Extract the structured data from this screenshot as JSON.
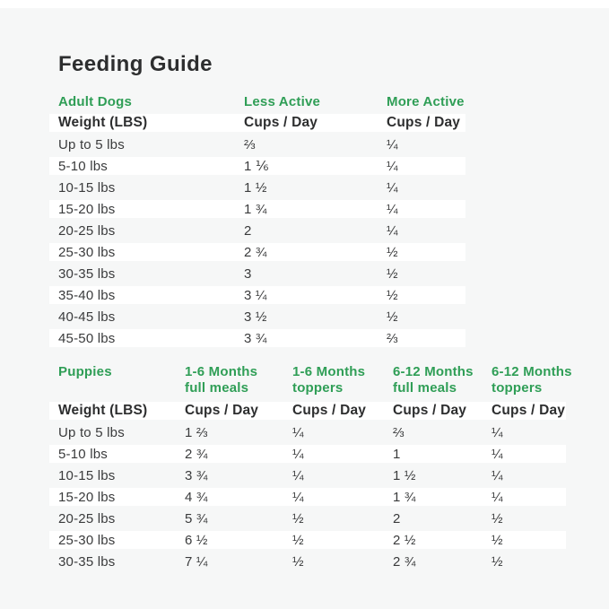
{
  "page": {
    "title": "Feeding Guide",
    "background_color": "#f6f7f7",
    "accent_green": "#2f9e56",
    "text_dark": "#2d2e2f",
    "row_stripe_color": "#ffffff"
  },
  "adult_table": {
    "section_label": "Adult Dogs",
    "columns": [
      "Less Active",
      "More Active"
    ],
    "weight_header": "Weight (LBS)",
    "cups_header": "Cups / Day",
    "rows": [
      [
        "Up to 5 lbs",
        "⅔",
        "¼"
      ],
      [
        "5-10 lbs",
        "1 ⅙",
        "¼"
      ],
      [
        "10-15 lbs",
        "1 ½",
        "¼"
      ],
      [
        "15-20 lbs",
        "1 ¾",
        "¼"
      ],
      [
        "20-25 lbs",
        "2",
        "¼"
      ],
      [
        "25-30 lbs",
        "2 ¾",
        "½"
      ],
      [
        "30-35 lbs",
        "3",
        "½"
      ],
      [
        "35-40 lbs",
        "3 ¼",
        "½"
      ],
      [
        "40-45 lbs",
        "3 ½",
        "½"
      ],
      [
        "45-50 lbs",
        "3 ¾",
        "⅔"
      ]
    ]
  },
  "puppy_table": {
    "section_label": "Puppies",
    "columns": [
      {
        "line1": "1-6 Months",
        "line2": "full meals"
      },
      {
        "line1": "1-6 Months",
        "line2": "toppers"
      },
      {
        "line1": "6-12 Months",
        "line2": "full meals"
      },
      {
        "line1": "6-12 Months",
        "line2": "toppers"
      }
    ],
    "weight_header": "Weight (LBS)",
    "cups_header": "Cups / Day",
    "rows": [
      [
        "Up to 5 lbs",
        "1 ⅔",
        "¼",
        "⅔",
        "¼"
      ],
      [
        "5-10 lbs",
        "2 ¾",
        "¼",
        "1",
        "¼"
      ],
      [
        "10-15 lbs",
        "3 ¾",
        "¼",
        "1 ½",
        "¼"
      ],
      [
        "15-20 lbs",
        "4 ¾",
        "¼",
        "1 ¾",
        "¼"
      ],
      [
        "20-25 lbs",
        "5 ¾",
        "½",
        "2",
        "½"
      ],
      [
        "25-30 lbs",
        "6 ½",
        "½",
        "2 ½",
        "½"
      ],
      [
        "30-35 lbs",
        "7 ¼",
        "½",
        "2 ¾",
        "½"
      ]
    ]
  }
}
